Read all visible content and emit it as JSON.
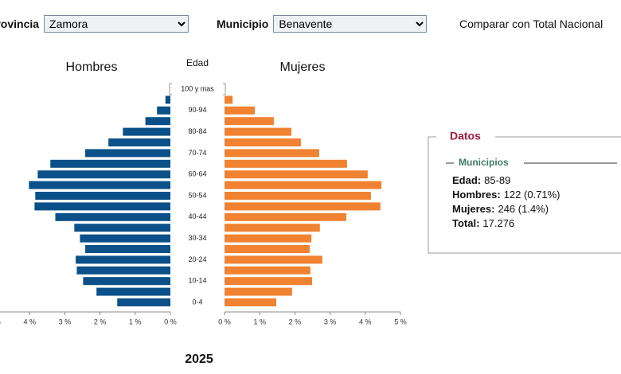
{
  "header": {
    "province_label": "Provincia",
    "province": "Zamora",
    "municipality_label": "Municipio",
    "municipality": "Benavente",
    "compare": "Comparar con Total Nacional"
  },
  "chart_data": {
    "type": "pyramid",
    "y_label": "Edad",
    "categories": [
      "0-4",
      null,
      "10-14",
      null,
      "20-24",
      null,
      "30-34",
      null,
      "40-44",
      null,
      "50-54",
      null,
      "60-64",
      null,
      "70-74",
      null,
      "80-84",
      null,
      "90-94",
      null,
      "100 y mas"
    ],
    "series": [
      {
        "name": "Hombres",
        "color": "#0b5089",
        "values": [
          1.51,
          2.1,
          2.48,
          2.66,
          2.69,
          2.42,
          2.57,
          2.73,
          3.27,
          3.86,
          3.84,
          4.02,
          3.77,
          3.41,
          2.42,
          1.76,
          1.35,
          0.71,
          0.38,
          0.14,
          0
        ]
      },
      {
        "name": "Mujeres",
        "color": "#f08232",
        "values": [
          1.47,
          1.92,
          2.49,
          2.44,
          2.78,
          2.42,
          2.47,
          2.71,
          3.46,
          4.43,
          4.16,
          4.46,
          4.07,
          3.48,
          2.69,
          2.17,
          1.9,
          1.4,
          0.86,
          0.23,
          0
        ]
      }
    ],
    "xlim": [
      0,
      5
    ],
    "xticks": [
      {
        "value": 0,
        "label": "0 %"
      },
      {
        "value": 1,
        "label": "1 %"
      },
      {
        "value": 2,
        "label": "2 %"
      },
      {
        "value": 3,
        "label": "3 %"
      },
      {
        "value": 4,
        "label": "4 %"
      },
      {
        "value": 5,
        "label": "5 %"
      }
    ]
  },
  "datos": {
    "title": "Datos",
    "subtitle": "Municipios",
    "rows": [
      {
        "label": "Edad:",
        "value": "85-89"
      },
      {
        "label": "Hombres:",
        "value": "122 (0.71%)"
      },
      {
        "label": "Mujeres:",
        "value": "246 (1.4%)"
      },
      {
        "label": "Total:",
        "value": "17.276"
      }
    ]
  },
  "year": "2025"
}
